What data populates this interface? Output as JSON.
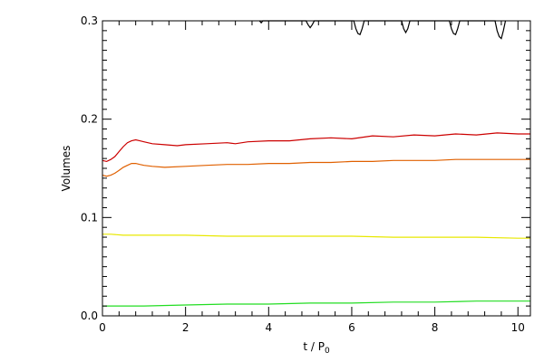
{
  "chart_data": {
    "type": "line",
    "title": "",
    "xlabel": "t / P",
    "xlabel_sub": "0",
    "ylabel": "Volumes",
    "xlim": [
      0,
      10.3
    ],
    "ylim": [
      0,
      0.3
    ],
    "grid": false,
    "legend": "none",
    "x_ticks": [
      0,
      2,
      4,
      6,
      8,
      10
    ],
    "x_tick_labels": [
      "0",
      "2",
      "4",
      "6",
      "8",
      "10"
    ],
    "y_ticks": [
      0.0,
      0.1,
      0.2,
      0.3
    ],
    "y_tick_labels": [
      "0.0",
      "0.1",
      "0.2",
      "0.3"
    ],
    "series": [
      {
        "color": "#000000",
        "x": [
          3.78,
          3.82,
          3.86,
          4.9,
          4.95,
          5.0,
          5.05,
          5.1,
          6.05,
          6.1,
          6.15,
          6.2,
          6.25,
          6.3,
          7.2,
          7.25,
          7.3,
          7.35,
          7.4,
          8.35,
          8.4,
          8.45,
          8.5,
          8.55,
          8.6,
          9.45,
          9.5,
          9.55,
          9.6,
          9.65,
          9.7
        ],
        "y": [
          0.3,
          0.298,
          0.3,
          0.3,
          0.296,
          0.293,
          0.296,
          0.3,
          0.3,
          0.292,
          0.287,
          0.286,
          0.292,
          0.3,
          0.3,
          0.292,
          0.288,
          0.292,
          0.3,
          0.3,
          0.292,
          0.287,
          0.286,
          0.292,
          0.3,
          0.3,
          0.29,
          0.284,
          0.282,
          0.29,
          0.3
        ]
      },
      {
        "color": "#cc0000",
        "x": [
          0.0,
          0.1,
          0.2,
          0.3,
          0.4,
          0.5,
          0.6,
          0.7,
          0.8,
          0.9,
          1.0,
          1.2,
          1.5,
          1.8,
          2.0,
          2.5,
          3.0,
          3.2,
          3.5,
          4.0,
          4.5,
          5.0,
          5.5,
          6.0,
          6.5,
          7.0,
          7.5,
          8.0,
          8.5,
          9.0,
          9.5,
          10.0,
          10.3
        ],
        "y": [
          0.158,
          0.157,
          0.159,
          0.162,
          0.167,
          0.172,
          0.176,
          0.178,
          0.179,
          0.178,
          0.177,
          0.175,
          0.174,
          0.173,
          0.174,
          0.175,
          0.176,
          0.175,
          0.177,
          0.178,
          0.178,
          0.18,
          0.181,
          0.18,
          0.183,
          0.182,
          0.184,
          0.183,
          0.185,
          0.184,
          0.186,
          0.185,
          0.185
        ]
      },
      {
        "color": "#e06000",
        "x": [
          0.0,
          0.1,
          0.2,
          0.3,
          0.4,
          0.5,
          0.6,
          0.7,
          0.8,
          0.9,
          1.0,
          1.2,
          1.5,
          2.0,
          2.5,
          3.0,
          3.5,
          4.0,
          4.5,
          5.0,
          5.5,
          6.0,
          6.5,
          7.0,
          7.5,
          8.0,
          8.5,
          9.0,
          9.5,
          10.0,
          10.3
        ],
        "y": [
          0.143,
          0.142,
          0.143,
          0.145,
          0.148,
          0.151,
          0.153,
          0.155,
          0.155,
          0.154,
          0.153,
          0.152,
          0.151,
          0.152,
          0.153,
          0.154,
          0.154,
          0.155,
          0.155,
          0.156,
          0.156,
          0.157,
          0.157,
          0.158,
          0.158,
          0.158,
          0.159,
          0.159,
          0.159,
          0.159,
          0.159
        ]
      },
      {
        "color": "#e8e800",
        "x": [
          0.0,
          0.2,
          0.5,
          1.0,
          2.0,
          3.0,
          4.0,
          5.0,
          6.0,
          7.0,
          8.0,
          9.0,
          10.0,
          10.3
        ],
        "y": [
          0.083,
          0.083,
          0.082,
          0.082,
          0.082,
          0.081,
          0.081,
          0.081,
          0.081,
          0.08,
          0.08,
          0.08,
          0.079,
          0.079
        ]
      },
      {
        "color": "#22dd22",
        "x": [
          0.0,
          0.5,
          1.0,
          2.0,
          3.0,
          4.0,
          5.0,
          6.0,
          7.0,
          8.0,
          9.0,
          10.0,
          10.3
        ],
        "y": [
          0.01,
          0.01,
          0.01,
          0.011,
          0.012,
          0.012,
          0.013,
          0.013,
          0.014,
          0.014,
          0.015,
          0.015,
          0.015
        ]
      }
    ]
  }
}
